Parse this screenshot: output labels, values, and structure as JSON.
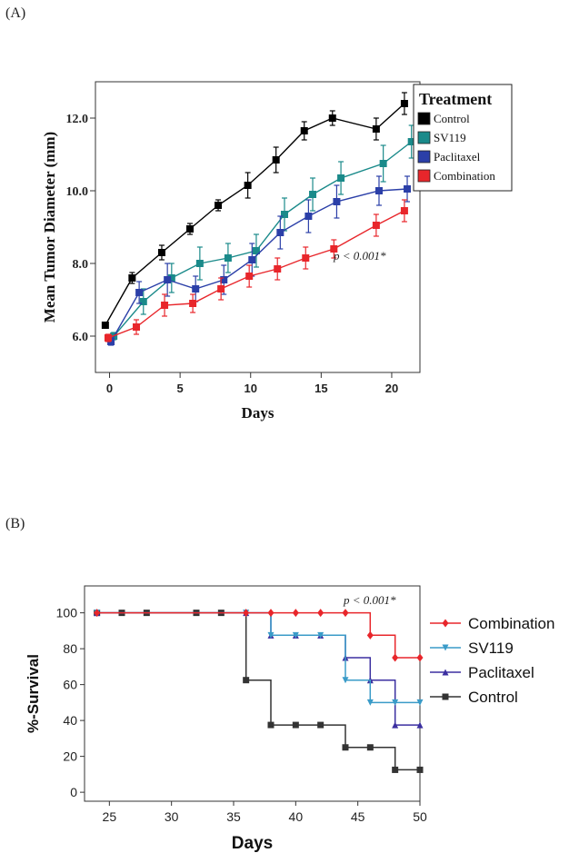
{
  "chart_data": [
    {
      "panel": "(A)",
      "type": "line",
      "xlabel": "Days",
      "ylabel": "Mean Tumor Diameter (mm)",
      "xlim": [
        -1,
        22
      ],
      "ylim": [
        5.0,
        13.0
      ],
      "xticks": [
        "0",
        "5",
        "10",
        "15",
        "20"
      ],
      "yticks": [
        "6.0",
        "8.0",
        "10.0",
        "12.0"
      ],
      "legend_title": "Treatment",
      "legend_position": "right",
      "annotation": "p < 0.001*",
      "series": [
        {
          "name": "Control",
          "color": "#000000",
          "x": [
            -0.3,
            1.6,
            3.7,
            5.7,
            7.7,
            9.8,
            11.8,
            13.8,
            15.8,
            18.9,
            20.9
          ],
          "y": [
            6.3,
            7.6,
            8.3,
            8.95,
            9.6,
            10.15,
            10.85,
            11.65,
            12.0,
            11.7,
            12.4
          ],
          "err": [
            0.05,
            0.15,
            0.2,
            0.15,
            0.15,
            0.35,
            0.35,
            0.25,
            0.2,
            0.3,
            0.3
          ]
        },
        {
          "name": "SV119",
          "color": "#1a8a8a",
          "x": [
            0.3,
            2.4,
            4.4,
            6.4,
            8.4,
            10.4,
            12.4,
            14.4,
            16.4,
            19.4,
            21.4
          ],
          "y": [
            6.0,
            6.95,
            7.6,
            8.0,
            8.15,
            8.35,
            9.35,
            9.9,
            10.35,
            10.75,
            11.35
          ],
          "err": [
            0.1,
            0.35,
            0.4,
            0.45,
            0.4,
            0.45,
            0.45,
            0.45,
            0.45,
            0.5,
            0.45
          ]
        },
        {
          "name": "Paclitaxel",
          "color": "#2b3fa8",
          "x": [
            0.1,
            2.1,
            4.1,
            6.1,
            8.1,
            10.1,
            12.1,
            14.1,
            16.1,
            19.1,
            21.1
          ],
          "y": [
            5.85,
            7.2,
            7.55,
            7.3,
            7.55,
            8.1,
            8.85,
            9.3,
            9.7,
            10.0,
            10.05
          ],
          "err": [
            0.1,
            0.3,
            0.45,
            0.35,
            0.4,
            0.45,
            0.45,
            0.45,
            0.45,
            0.4,
            0.35
          ]
        },
        {
          "name": "Combination",
          "color": "#e8262b",
          "x": [
            -0.1,
            1.9,
            3.9,
            5.9,
            7.9,
            9.9,
            11.9,
            13.9,
            15.9,
            18.9,
            20.9
          ],
          "y": [
            5.95,
            6.25,
            6.85,
            6.9,
            7.3,
            7.65,
            7.85,
            8.15,
            8.4,
            9.05,
            9.45
          ],
          "err": [
            0.1,
            0.2,
            0.3,
            0.25,
            0.3,
            0.3,
            0.3,
            0.3,
            0.25,
            0.3,
            0.3
          ]
        }
      ]
    },
    {
      "panel": "(B)",
      "type": "line",
      "subtype": "kaplan-meier",
      "xlabel": "Days",
      "ylabel": "%-Survival",
      "xlim": [
        23,
        50
      ],
      "ylim": [
        -5,
        115
      ],
      "xticks": [
        "25",
        "30",
        "35",
        "40",
        "45",
        "50"
      ],
      "yticks": [
        "0",
        "20",
        "40",
        "60",
        "80",
        "100"
      ],
      "legend_position": "right",
      "annotation": "p < 0.001*",
      "series": [
        {
          "name": "Combination",
          "color": "#e8262b",
          "marker": "diamond",
          "x": [
            24,
            36,
            38,
            40,
            42,
            44,
            46,
            48,
            50
          ],
          "y": [
            100,
            100,
            100,
            100,
            100,
            100,
            87.5,
            75,
            75
          ]
        },
        {
          "name": "SV119",
          "color": "#3a9bc8",
          "marker": "triangle-down",
          "x": [
            24,
            36,
            38,
            40,
            42,
            44,
            46,
            48,
            50
          ],
          "y": [
            100,
            100,
            87.5,
            87.5,
            87.5,
            62.5,
            50,
            50,
            50
          ]
        },
        {
          "name": "Paclitaxel",
          "color": "#3b2fa0",
          "marker": "triangle-up",
          "x": [
            24,
            36,
            38,
            40,
            42,
            44,
            46,
            48,
            50
          ],
          "y": [
            100,
            100,
            87.5,
            87.5,
            87.5,
            75,
            62.5,
            37.5,
            37.5
          ]
        },
        {
          "name": "Control",
          "color": "#333333",
          "marker": "square",
          "x": [
            24,
            26,
            28,
            32,
            34,
            36,
            38,
            40,
            42,
            44,
            46,
            48,
            50
          ],
          "y": [
            100,
            100,
            100,
            100,
            100,
            62.5,
            37.5,
            37.5,
            37.5,
            25,
            25,
            12.5,
            12.5
          ]
        }
      ]
    }
  ]
}
